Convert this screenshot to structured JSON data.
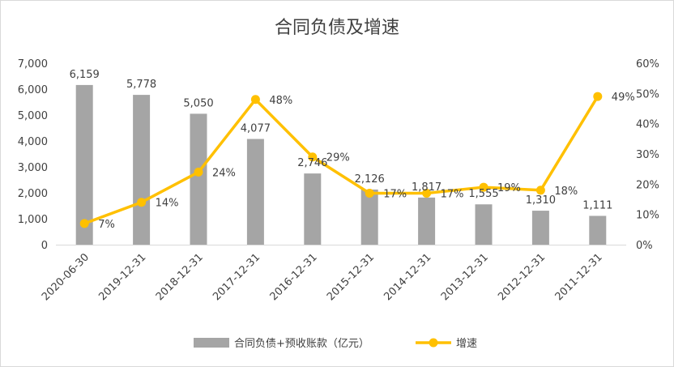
{
  "chart_data": {
    "type": "bar+line",
    "title": "合同负债及增速",
    "categories": [
      "2020-06-30",
      "2019-12-31",
      "2018-12-31",
      "2017-12-31",
      "2016-12-31",
      "2015-12-31",
      "2014-12-31",
      "2013-12-31",
      "2012-12-31",
      "2011-12-31"
    ],
    "series": [
      {
        "name": "合同负债+预收账款（亿元）",
        "type": "bar",
        "axis": "left",
        "color": "#a5a5a5",
        "values": [
          6159,
          5778,
          5050,
          4077,
          2746,
          2126,
          1817,
          1555,
          1310,
          1111
        ],
        "labels": [
          "6,159",
          "5,778",
          "5,050",
          "4,077",
          "2,746",
          "2,126",
          "1,817",
          "1,555",
          "1,310",
          "1,111"
        ]
      },
      {
        "name": "增速",
        "type": "line",
        "axis": "right",
        "color": "#ffc000",
        "values": [
          0.07,
          0.14,
          0.24,
          0.48,
          0.29,
          0.17,
          0.17,
          0.19,
          0.18,
          0.49
        ],
        "labels": [
          "7%",
          "14%",
          "24%",
          "48%",
          "29%",
          "17%",
          "17%",
          "19%",
          "18%",
          "49%"
        ]
      }
    ],
    "y_left": {
      "ylim": [
        0,
        7000
      ],
      "ticks": [
        0,
        1000,
        2000,
        3000,
        4000,
        5000,
        6000,
        7000
      ],
      "tick_labels": [
        "0",
        "1,000",
        "2,000",
        "3,000",
        "4,000",
        "5,000",
        "6,000",
        "7,000"
      ]
    },
    "y_right": {
      "ylim": [
        0,
        0.6
      ],
      "ticks": [
        0,
        0.1,
        0.2,
        0.3,
        0.4,
        0.5,
        0.6
      ],
      "tick_labels": [
        "0%",
        "10%",
        "20%",
        "30%",
        "40%",
        "50%",
        "60%"
      ]
    },
    "grid": false,
    "legend": "bottom"
  }
}
